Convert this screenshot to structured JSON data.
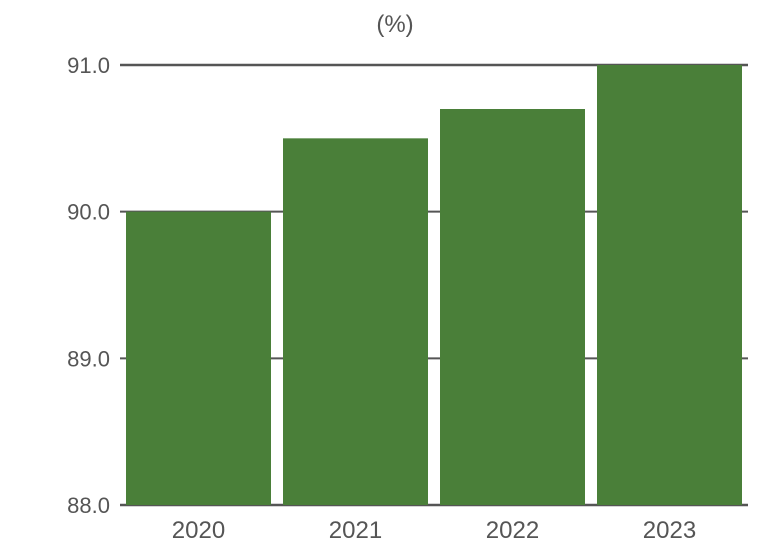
{
  "chart_data": {
    "type": "bar",
    "title": "(%)",
    "categories": [
      "2020",
      "2021",
      "2022",
      "2023"
    ],
    "values": [
      90.0,
      90.5,
      90.7,
      91.0
    ],
    "ylim": [
      88.0,
      91.0
    ],
    "yticks": [
      88.0,
      89.0,
      90.0,
      91.0
    ],
    "ytick_labels": [
      "88.0",
      "89.0",
      "90.0",
      "91.0"
    ],
    "xlabel": "",
    "ylabel": "",
    "grid": true,
    "legend": "none",
    "bar_color": "#4a7f39",
    "axis_color": "#555555",
    "text_color": "#555555"
  }
}
